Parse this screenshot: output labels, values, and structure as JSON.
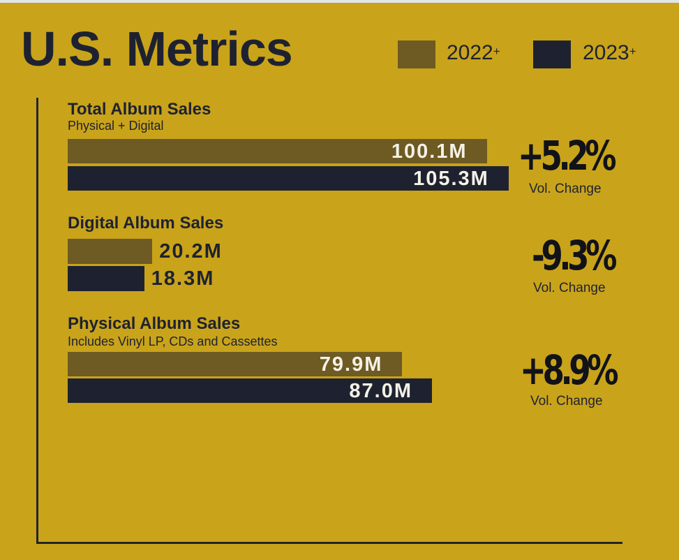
{
  "colors": {
    "background": "#c9a31a",
    "series_2022": "#6e5a23",
    "series_2023": "#1e2230"
  },
  "header": {
    "title": "U.S. Metrics"
  },
  "chart_data": {
    "type": "bar",
    "orientation": "horizontal",
    "title": "U.S. Metrics",
    "series": [
      {
        "name": "2022",
        "superscript": "+",
        "values": [
          100.1,
          20.2,
          79.9
        ]
      },
      {
        "name": "2023",
        "superscript": "+",
        "values": [
          105.3,
          18.3,
          87.0
        ]
      }
    ],
    "categories": [
      "Total Album Sales",
      "Digital Album Sales",
      "Physical Album Sales"
    ],
    "legend_position": "top-right",
    "grid": false,
    "metrics": [
      {
        "title": "Total Album Sales",
        "subtitle": "Physical + Digital",
        "labels": [
          "100.1M",
          "105.3M"
        ],
        "change": "+5.2%",
        "change_label": "Vol. Change"
      },
      {
        "title": "Digital Album Sales",
        "subtitle": "",
        "labels": [
          "20.2M",
          "18.3M"
        ],
        "change": "-9.3%",
        "change_label": "Vol. Change"
      },
      {
        "title": "Physical Album Sales",
        "subtitle": "Includes Vinyl LP, CDs and Cassettes",
        "labels": [
          "79.9M",
          "87.0M"
        ],
        "change": "+8.9%",
        "change_label": "Vol. Change"
      }
    ]
  }
}
